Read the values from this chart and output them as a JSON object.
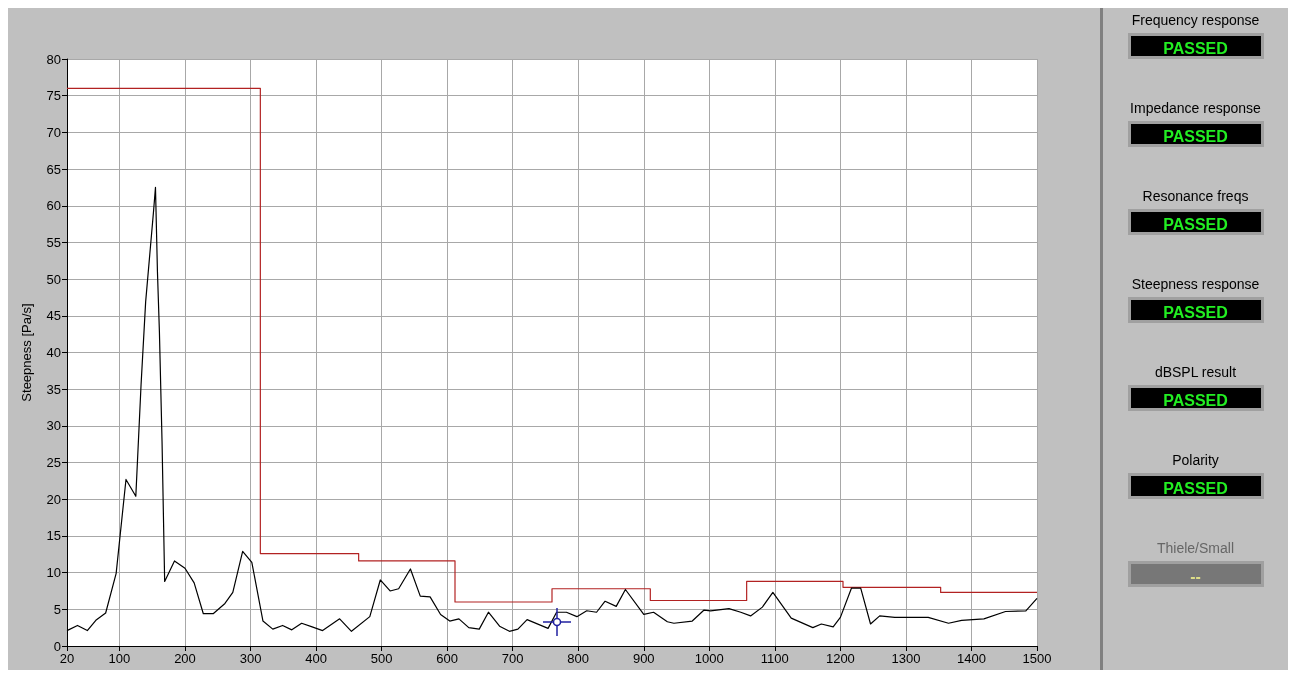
{
  "chart_data": [
    {
      "type": "line",
      "ylabel": "Steepness [Pa/s]",
      "xlim": [
        20,
        1500
      ],
      "xticks": [
        20,
        100,
        200,
        300,
        400,
        500,
        600,
        700,
        800,
        900,
        1000,
        1100,
        1200,
        1300,
        1400,
        1500
      ],
      "ylim": [
        0,
        80
      ],
      "yticks": [
        0,
        5,
        10,
        15,
        20,
        25,
        30,
        35,
        40,
        45,
        50,
        55,
        60,
        65,
        70,
        75,
        80
      ],
      "grid": true,
      "marker": "none",
      "series": [
        {
          "type": "line",
          "color": "#000000",
          "x": [
            20,
            36,
            51,
            64,
            79,
            95,
            110,
            125,
            133,
            140,
            152,
            155,
            158,
            161,
            165,
            169,
            184,
            200,
            214,
            228,
            243,
            261,
            273,
            288,
            302,
            319,
            334,
            349,
            363,
            378,
            394,
            410,
            436,
            454,
            482,
            498,
            513,
            526,
            544,
            559,
            574,
            590,
            604,
            618,
            633,
            649,
            663,
            680,
            695,
            708,
            722,
            754,
            767,
            782,
            798,
            813,
            828,
            841,
            858,
            872,
            900,
            915,
            936,
            946,
            974,
            992,
            1002,
            1030,
            1048,
            1063,
            1081,
            1097,
            1125,
            1158,
            1171,
            1189,
            1200,
            1217,
            1231,
            1246,
            1260,
            1283,
            1304,
            1334,
            1365,
            1385,
            1419,
            1452,
            1483,
            1500
          ],
          "values": [
            2.1,
            2.8,
            2.1,
            3.5,
            4.5,
            9.9,
            22.7,
            20.4,
            35.6,
            46.9,
            59.2,
            62.5,
            51,
            42.8,
            27.9,
            8.8,
            11.6,
            10.6,
            8.6,
            4.4,
            4.4,
            5.8,
            7.3,
            12.9,
            11.4,
            3.4,
            2.3,
            2.8,
            2.2,
            3.1,
            2.6,
            2.1,
            3.7,
            2.0,
            4.0,
            9.0,
            7.5,
            7.8,
            10.5,
            6.8,
            6.7,
            4.3,
            3.4,
            3.7,
            2.5,
            2.3,
            4.6,
            2.7,
            2.0,
            2.3,
            3.6,
            2.4,
            4.6,
            4.6,
            4.0,
            4.8,
            4.6,
            6.1,
            5.4,
            7.7,
            4.3,
            4.6,
            3.3,
            3.1,
            3.4,
            4.9,
            4.8,
            5.1,
            4.6,
            4.1,
            5.3,
            7.3,
            3.8,
            2.5,
            3.0,
            2.6,
            3.9,
            7.9,
            7.9,
            3.0,
            4.1,
            3.9,
            3.9,
            3.9,
            3.1,
            3.5,
            3.7,
            4.7,
            4.8,
            6.5
          ]
        },
        {
          "type": "step",
          "color": "#b22222",
          "x": [
            20,
            315,
            465,
            612,
            760,
            910,
            1057,
            1204,
            1353,
            1500
          ],
          "values": [
            76,
            12.6,
            11.6,
            6.0,
            7.8,
            6.2,
            8.8,
            8.0,
            7.3,
            7.3
          ]
        }
      ]
    },
    {
      "type": "other",
      "annotations": [
        "Frequency response",
        "PASSED",
        "Impedance response",
        "PASSED",
        "Resonance freqs",
        "PASSED",
        "Steepness response",
        "PASSED",
        "dBSPL result",
        "PASSED",
        "Polarity",
        "PASSED",
        "Thiele/Small",
        "--"
      ]
    }
  ]
}
